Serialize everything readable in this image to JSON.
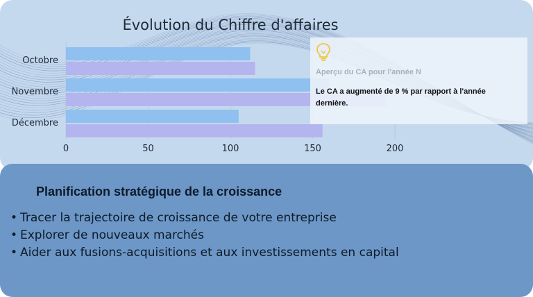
{
  "chart_data": {
    "type": "bar",
    "orientation": "horizontal",
    "title": "Évolution du Chiffre d'affaires",
    "categories": [
      "Octobre",
      "Novembre",
      "Décembre"
    ],
    "series": [
      {
        "color": "#8fc0ef",
        "values": [
          112,
          160,
          105
        ]
      },
      {
        "color": "#b4b5ef",
        "values": [
          115,
          195,
          156
        ]
      }
    ],
    "xlim": [
      0,
      220
    ],
    "xticks": [
      "0",
      "50",
      "100",
      "150",
      "200"
    ],
    "grid": true,
    "legend": "none"
  },
  "info_card": {
    "icon": "lightbulb-icon",
    "title": "Aperçu du CA pour l'année N",
    "text": "Le CA a augmenté de 9 % par rapport à l'année dernière."
  },
  "strategy": {
    "heading": "Planification stratégique de la croissance",
    "items": [
      "Tracer la trajectoire de croissance de votre entreprise",
      "Explorer de nouveaux marchés",
      "Aider aux fusions-acquisitions et aux investissements en capital"
    ]
  },
  "colors": {
    "top_panel": "#c5d9ee",
    "bottom_panel": "#6c97c6",
    "waves": "#2c4a7c"
  }
}
